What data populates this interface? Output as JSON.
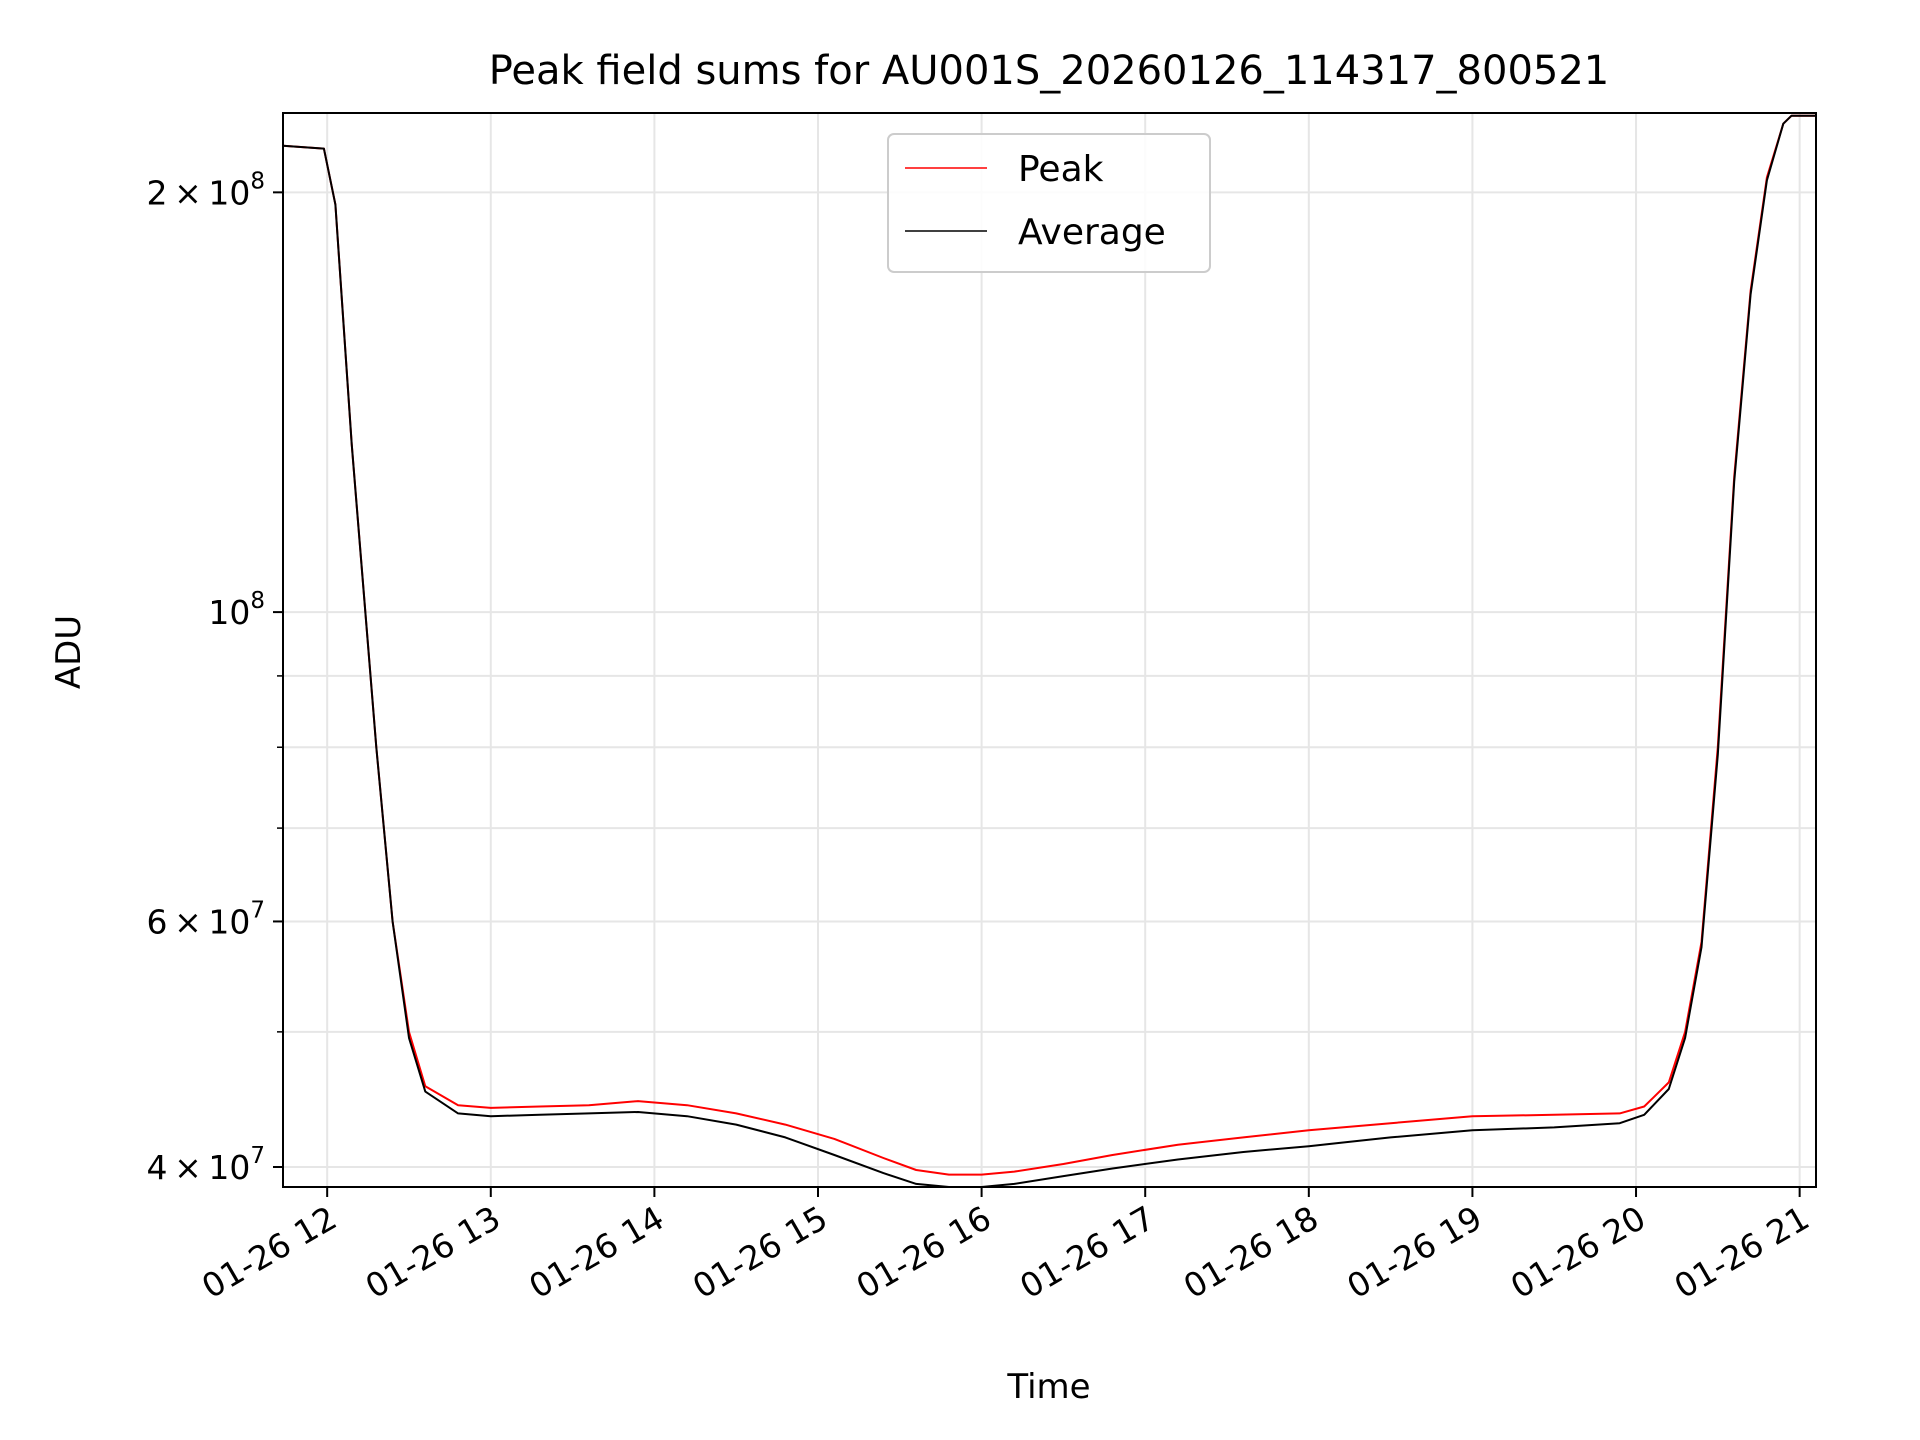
{
  "chart_data": {
    "type": "line",
    "title": "Peak field sums for AU001S_20260126_114317_800521",
    "xlabel": "Time",
    "ylabel": "ADU",
    "yscale": "log",
    "xlim_hours": [
      11.73,
      21.1
    ],
    "ylim": [
      38700000,
      228000000
    ],
    "grid": true,
    "legend_position": "upper center",
    "x_ticks": [
      {
        "label": "01-26 12",
        "hour": 12
      },
      {
        "label": "01-26 13",
        "hour": 13
      },
      {
        "label": "01-26 14",
        "hour": 14
      },
      {
        "label": "01-26 15",
        "hour": 15
      },
      {
        "label": "01-26 16",
        "hour": 16
      },
      {
        "label": "01-26 17",
        "hour": 17
      },
      {
        "label": "01-26 18",
        "hour": 18
      },
      {
        "label": "01-26 19",
        "hour": 19
      },
      {
        "label": "01-26 20",
        "hour": 20
      },
      {
        "label": "01-26 21",
        "hour": 21
      }
    ],
    "y_major_ticks": [
      {
        "value": 40000000,
        "mantissa": "4",
        "exponent": "7"
      },
      {
        "value": 60000000,
        "mantissa": "6",
        "exponent": "7"
      },
      {
        "value": 100000000,
        "mantissa": "",
        "exponent": "8"
      },
      {
        "value": 200000000,
        "mantissa": "2",
        "exponent": "8"
      }
    ],
    "y_minor_ticks": [
      50000000,
      70000000,
      80000000,
      90000000
    ],
    "series": [
      {
        "name": "Peak",
        "color": "#ff0000",
        "hours": [
          11.73,
          11.98,
          12.05,
          12.15,
          12.3,
          12.4,
          12.5,
          12.6,
          12.8,
          13.0,
          13.3,
          13.6,
          13.9,
          14.2,
          14.5,
          14.8,
          15.1,
          15.4,
          15.6,
          15.8,
          16.0,
          16.2,
          16.5,
          16.8,
          17.2,
          17.6,
          18.0,
          18.5,
          19.0,
          19.5,
          19.9,
          20.05,
          20.2,
          20.3,
          20.4,
          20.5,
          20.6,
          20.7,
          20.8,
          20.9,
          20.95,
          21.1
        ],
        "values": [
          216000000,
          215000000,
          196000000,
          132000000,
          80000000,
          60000000,
          50000000,
          45700000,
          44300000,
          44100000,
          44200000,
          44300000,
          44600000,
          44300000,
          43700000,
          42900000,
          41900000,
          40600000,
          39800000,
          39500000,
          39500000,
          39700000,
          40200000,
          40800000,
          41500000,
          42000000,
          42500000,
          43000000,
          43500000,
          43600000,
          43700000,
          44200000,
          46000000,
          50000000,
          58000000,
          80000000,
          125000000,
          170000000,
          205000000,
          224000000,
          227000000,
          227000000
        ]
      },
      {
        "name": "Average",
        "color": "#000000",
        "hours": [
          11.73,
          11.98,
          12.05,
          12.15,
          12.3,
          12.4,
          12.5,
          12.6,
          12.8,
          13.0,
          13.3,
          13.6,
          13.9,
          14.2,
          14.5,
          14.8,
          15.1,
          15.4,
          15.6,
          15.8,
          16.0,
          16.2,
          16.5,
          16.8,
          17.2,
          17.6,
          18.0,
          18.5,
          19.0,
          19.5,
          19.9,
          20.05,
          20.2,
          20.3,
          20.4,
          20.5,
          20.6,
          20.7,
          20.8,
          20.9,
          20.95,
          21.1
        ],
        "values": [
          216000000,
          215000000,
          196000000,
          132000000,
          80000000,
          60000000,
          49500000,
          45300000,
          43700000,
          43500000,
          43600000,
          43700000,
          43800000,
          43500000,
          42900000,
          42000000,
          40800000,
          39600000,
          38900000,
          38700000,
          38700000,
          38900000,
          39400000,
          39900000,
          40500000,
          41000000,
          41400000,
          42000000,
          42500000,
          42700000,
          43000000,
          43600000,
          45500000,
          49500000,
          57500000,
          79000000,
          124000000,
          169000000,
          204000000,
          224000000,
          227000000,
          227000000
        ]
      }
    ]
  }
}
